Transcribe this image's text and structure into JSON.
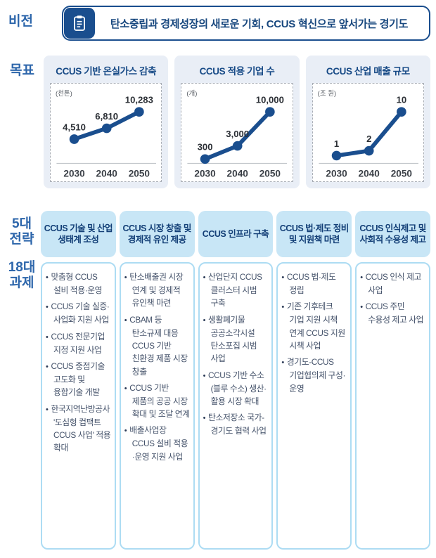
{
  "vision": {
    "label": "비전",
    "icon": "clipboard-icon",
    "text": "탄소중립과 경제성장의 새로운 기회, CCUS 혁신으로 앞서가는 경기도"
  },
  "goals": {
    "label": "목표"
  },
  "chart_data": [
    {
      "type": "line",
      "title": "CCUS 기반 온실가스 감축",
      "unit": "(천톤)",
      "categories": [
        "2030",
        "2040",
        "2050"
      ],
      "values": [
        4510,
        6810,
        10283
      ],
      "value_labels": [
        "4,510",
        "6,810",
        "10,283"
      ],
      "ylim": [
        0,
        10283
      ],
      "line_color": "#1a4e8e",
      "grid": false,
      "legend": "none"
    },
    {
      "type": "line",
      "title": "CCUS 적용 기업 수",
      "unit": "(개)",
      "categories": [
        "2030",
        "2040",
        "2050"
      ],
      "values": [
        300,
        3000,
        10000
      ],
      "value_labels": [
        "300",
        "3,000",
        "10,000"
      ],
      "ylim": [
        0,
        10000
      ],
      "line_color": "#1a4e8e",
      "grid": false,
      "legend": "none"
    },
    {
      "type": "line",
      "title": "CCUS 산업 매출 규모",
      "unit": "(조 원)",
      "categories": [
        "2030",
        "2040",
        "2050"
      ],
      "values": [
        1,
        2,
        10
      ],
      "value_labels": [
        "1",
        "2",
        "10"
      ],
      "ylim": [
        0,
        10
      ],
      "line_color": "#1a4e8e",
      "grid": false,
      "legend": "none"
    }
  ],
  "strategies": {
    "row_label": {
      "line1": "5대",
      "line2": "전략"
    },
    "tasks_label": {
      "line1": "18대",
      "line2": "과제"
    },
    "columns": [
      {
        "header": "CCUS 기술 및 산업 생태계 조성",
        "items": [
          "맞춤형 CCUS 설비 적용·운영",
          "CCUS 기술 실증·사업화 지원 사업",
          "CCUS 전문기업 지정 지원 사업",
          "CCUS 중점기술 고도화 및 융합기술 개발",
          "한국지역난방공사 '도심형 컴팩트 CCUS 사업' 적용 확대"
        ]
      },
      {
        "header": "CCUS 시장 창출 및 경제적 유인 제공",
        "items": [
          "탄소배출권 시장 연계 및 경제적 유인책 마련",
          "CBAM 등 탄소규제 대응 CCUS 기반 친환경 제품 시장 창출",
          "CCUS 기반 제품의 공공 시장 확대 및 조달 연계",
          "배출사업장 CCUS 설비 적용·운영 지원 사업"
        ]
      },
      {
        "header": "CCUS 인프라 구축",
        "items": [
          "산업단지 CCUS 클러스터 시범 구축",
          "생활폐기물 공공소각시설 탄소포집 시범 사업",
          "CCUS 기반 수소(블루 수소) 생산·활용 시장 확대",
          "탄소저장소 국가-경기도 협력 사업"
        ]
      },
      {
        "header": "CCUS 법·제도 정비 및 지원책 마련",
        "items": [
          "CCUS 법·제도 정립",
          "기존 기후테크 기업 지원 시책 연계 CCUS 지원 시책 사업",
          "경기도-CCUS 기업협의체 구성·운영"
        ]
      },
      {
        "header": "CCUS 인식제고 및 사회적 수용성 제고",
        "items": [
          "CCUS 인식 제고 사업",
          "CCUS 주민 수용성 제고 사업"
        ]
      }
    ]
  },
  "colors": {
    "navy": "#1a4e8e",
    "side_label_blue": "#2d66ab",
    "header_fill": "#c8e6f6",
    "body_border": "#addcf3",
    "card_bg": "#e9eef6"
  }
}
